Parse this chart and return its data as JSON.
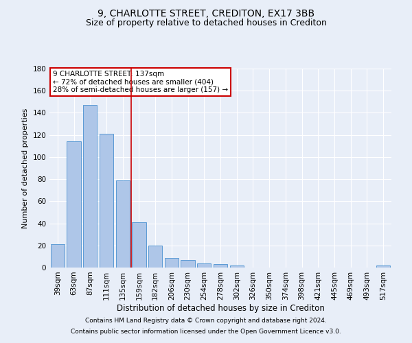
{
  "title1": "9, CHARLOTTE STREET, CREDITON, EX17 3BB",
  "title2": "Size of property relative to detached houses in Crediton",
  "xlabel": "Distribution of detached houses by size in Crediton",
  "ylabel": "Number of detached properties",
  "categories": [
    "39sqm",
    "63sqm",
    "87sqm",
    "111sqm",
    "135sqm",
    "159sqm",
    "182sqm",
    "206sqm",
    "230sqm",
    "254sqm",
    "278sqm",
    "302sqm",
    "326sqm",
    "350sqm",
    "374sqm",
    "398sqm",
    "421sqm",
    "445sqm",
    "469sqm",
    "493sqm",
    "517sqm"
  ],
  "values": [
    21,
    114,
    147,
    121,
    79,
    41,
    20,
    9,
    7,
    4,
    3,
    2,
    0,
    0,
    0,
    0,
    0,
    0,
    0,
    0,
    2
  ],
  "bar_color": "#aec6e8",
  "bar_edge_color": "#5b9bd5",
  "vline_x": 4.5,
  "vline_color": "#cc0000",
  "annotation_text": "9 CHARLOTTE STREET: 137sqm\n← 72% of detached houses are smaller (404)\n28% of semi-detached houses are larger (157) →",
  "annotation_box_color": "#ffffff",
  "annotation_box_edge_color": "#cc0000",
  "footnote1": "Contains HM Land Registry data © Crown copyright and database right 2024.",
  "footnote2": "Contains public sector information licensed under the Open Government Licence v3.0.",
  "ylim": [
    0,
    180
  ],
  "yticks": [
    0,
    20,
    40,
    60,
    80,
    100,
    120,
    140,
    160,
    180
  ],
  "background_color": "#e8eef8",
  "grid_color": "#ffffff",
  "title1_fontsize": 10,
  "title2_fontsize": 9,
  "xlabel_fontsize": 8.5,
  "ylabel_fontsize": 8,
  "tick_fontsize": 7.5,
  "annotation_fontsize": 7.5,
  "footnote_fontsize": 6.5
}
